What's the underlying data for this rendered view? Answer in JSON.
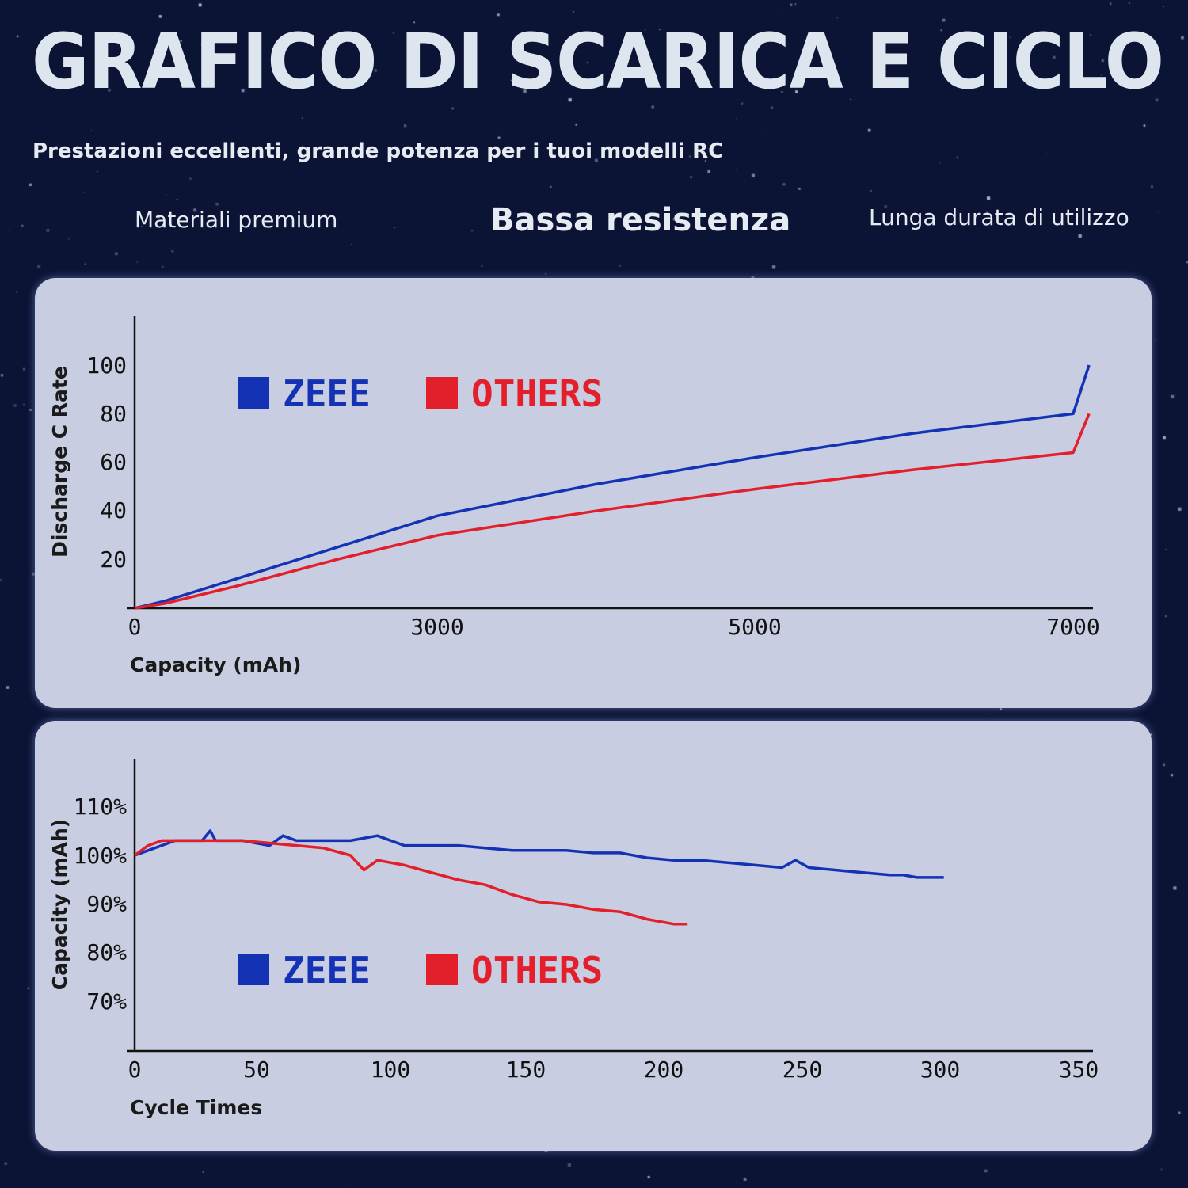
{
  "header": {
    "title": "GRAFICO DI SCARICA E CICLO",
    "subtitle": "Prestazioni eccellenti, grande potenza per i tuoi modelli RC"
  },
  "features": [
    "Materiali premium",
    "Bassa resistenza",
    "Lunga durata di utilizzo"
  ],
  "colors": {
    "background": "#0c1436",
    "panel": "#c8cde1",
    "zeee": "#1433b4",
    "others": "#e21f2b"
  },
  "chart_data": [
    {
      "type": "line",
      "xlabel": "Capacity (mAh)",
      "ylabel": "Discharge C Rate",
      "x_ticks": [
        "0",
        "3000",
        "5000",
        "7000"
      ],
      "y_ticks": [
        "20",
        "40",
        "60",
        "80",
        "100"
      ],
      "legend": [
        "ZEEE",
        "OTHERS"
      ],
      "grid": false,
      "series": [
        {
          "name": "ZEEE",
          "x": [
            0,
            300,
            1000,
            2000,
            3000,
            4000,
            5000,
            6000,
            7000,
            7100
          ],
          "y": [
            0,
            3,
            12,
            25,
            38,
            51,
            62,
            72,
            80,
            100
          ]
        },
        {
          "name": "OTHERS",
          "x": [
            0,
            300,
            1000,
            2000,
            3000,
            4000,
            5000,
            6000,
            7000,
            7100
          ],
          "y": [
            0,
            2,
            9,
            20,
            30,
            40,
            49,
            57,
            64,
            80
          ]
        }
      ]
    },
    {
      "type": "line",
      "xlabel": "Cycle Times",
      "ylabel": "Capacity (mAh)",
      "x_ticks": [
        "0",
        "50",
        "100",
        "150",
        "200",
        "250",
        "300",
        "350"
      ],
      "y_ticks": [
        "110%",
        "100%",
        "90%",
        "80%",
        "70%"
      ],
      "legend": [
        "ZEEE",
        "OTHERS"
      ],
      "grid": false,
      "series": [
        {
          "name": "ZEEE",
          "x": [
            0,
            5,
            10,
            15,
            20,
            25,
            28,
            30,
            35,
            40,
            50,
            55,
            60,
            70,
            80,
            90,
            100,
            110,
            120,
            130,
            140,
            150,
            160,
            170,
            180,
            190,
            200,
            210,
            220,
            230,
            240,
            245,
            250,
            260,
            270,
            280,
            285,
            290,
            300
          ],
          "y": [
            100,
            101,
            102,
            103,
            103,
            103,
            105,
            103,
            103,
            103,
            102,
            104,
            103,
            103,
            103,
            104,
            102,
            102,
            102,
            101.5,
            101,
            101,
            101,
            100.5,
            100.5,
            99.5,
            99,
            99,
            98.5,
            98,
            97.5,
            99,
            97.5,
            97,
            96.5,
            96,
            96,
            95.5,
            95.5
          ]
        },
        {
          "name": "OTHERS",
          "x": [
            0,
            5,
            10,
            20,
            30,
            40,
            50,
            60,
            70,
            80,
            85,
            90,
            100,
            110,
            120,
            130,
            140,
            150,
            160,
            170,
            180,
            190,
            200,
            205
          ],
          "y": [
            100,
            102,
            103,
            103,
            103,
            103,
            102.5,
            102,
            101.5,
            100,
            97,
            99,
            98,
            96.5,
            95,
            94,
            92,
            90.5,
            90,
            89,
            88.5,
            87,
            86,
            86
          ]
        }
      ]
    }
  ]
}
